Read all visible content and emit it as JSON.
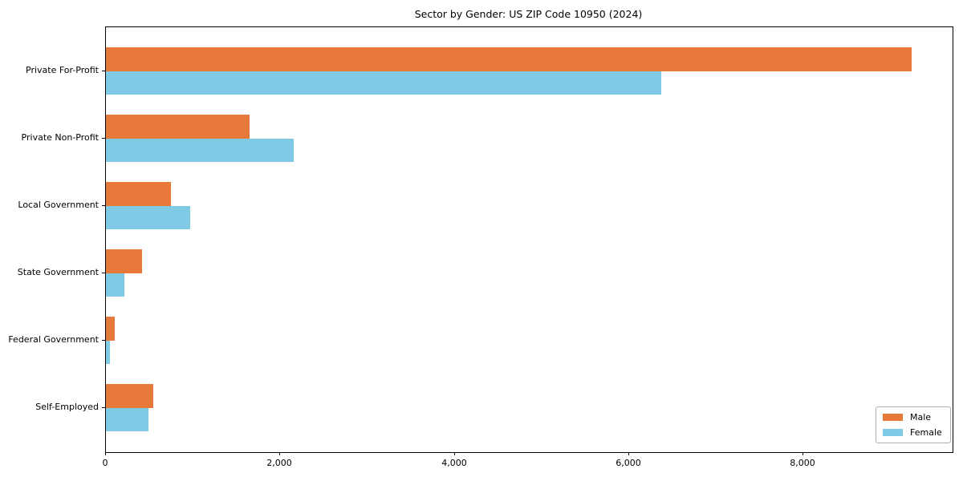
{
  "chart_data": {
    "type": "bar",
    "orientation": "horizontal",
    "title": "Sector by Gender: US ZIP Code 10950 (2024)",
    "categories": [
      "Private For-Profit",
      "Private Non-Profit",
      "Local Government",
      "State Government",
      "Federal Government",
      "Self-Employed"
    ],
    "series": [
      {
        "name": "Male",
        "color": "#e7793b",
        "values": [
          9240,
          1650,
          745,
          415,
          100,
          540
        ]
      },
      {
        "name": "Female",
        "color": "#7fcbe6",
        "values": [
          6370,
          2150,
          965,
          210,
          50,
          490
        ]
      }
    ],
    "xlabel": "",
    "ylabel": "",
    "xlim": [
      0,
      9712
    ],
    "x_ticks": [
      0,
      2000,
      4000,
      6000,
      8000
    ],
    "x_tick_labels": [
      "0",
      "2,000",
      "4,000",
      "6,000",
      "8,000"
    ],
    "grid": false,
    "legend_position": "lower right",
    "legend_labels": [
      "Male",
      "Female"
    ]
  }
}
